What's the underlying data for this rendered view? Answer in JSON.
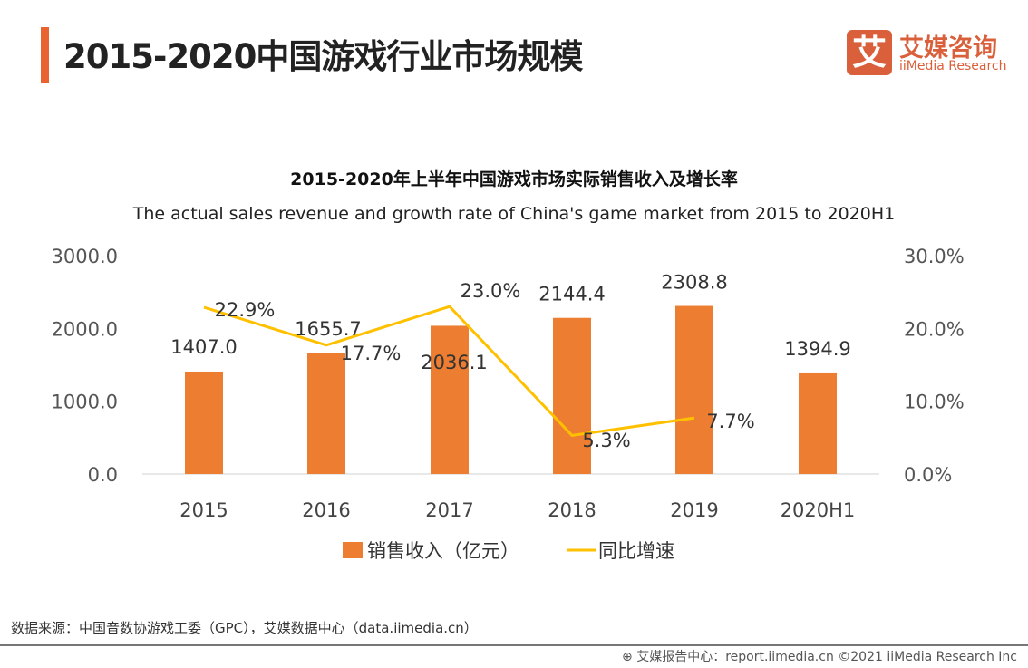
{
  "header": {
    "title": "2015-2020中国游戏行业市场规模",
    "accent_color": "#e8632f"
  },
  "logo": {
    "mark": "艾",
    "name_cn": "艾媒咨询",
    "name_en": "iiMedia Research",
    "color": "#d9603b"
  },
  "chart_data": {
    "type": "bar+line",
    "title": "2015-2020年上半年中国游戏市场实际销售收入及增长率",
    "subtitle": "The actual sales revenue and growth rate of China's game market from 2015 to 2020H1",
    "categories": [
      "2015",
      "2016",
      "2017",
      "2018",
      "2019",
      "2020H1"
    ],
    "series": [
      {
        "name": "销售收入（亿元）",
        "type": "bar",
        "axis": "left",
        "color": "#ed7d31",
        "values": [
          1407.0,
          1655.7,
          2036.1,
          2144.4,
          2308.8,
          1394.9
        ],
        "labels": [
          "1407.0",
          "1655.7",
          "2036.1",
          "2144.4",
          "2308.8",
          "1394.9"
        ]
      },
      {
        "name": "同比增速",
        "type": "line",
        "axis": "right",
        "color": "#ffc000",
        "values": [
          22.9,
          17.7,
          23.0,
          5.3,
          7.7,
          null
        ],
        "labels": [
          "22.9%",
          "17.7%",
          "23.0%",
          "5.3%",
          "7.7%",
          ""
        ]
      }
    ],
    "left_axis": {
      "range": [
        0,
        3000
      ],
      "ticks": [
        "0.0",
        "1000.0",
        "2000.0",
        "3000.0"
      ]
    },
    "right_axis": {
      "range": [
        0,
        30
      ],
      "ticks": [
        "0.0%",
        "10.0%",
        "20.0%",
        "30.0%"
      ]
    },
    "grid": false,
    "legend": "bottom"
  },
  "source": "数据来源：中国音数协游戏工委（GPC），艾媒数据中心（data.iimedia.cn）",
  "footer": "艾媒报告中心：report.iimedia.cn   ©2021  iiMedia Research  Inc"
}
